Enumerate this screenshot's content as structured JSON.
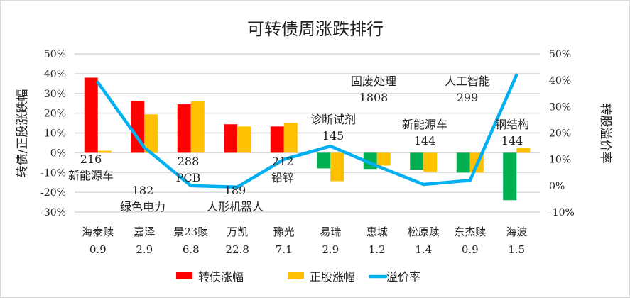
{
  "chart_data": {
    "type": "bar+line",
    "title": "可转债周涨跌排行",
    "ylabel_left": "转债/正股涨跌幅",
    "ylabel_right": "转股溢价率",
    "ylim_left": [
      -30,
      50
    ],
    "ylim_right": [
      -10,
      50
    ],
    "yticks_left": [
      "50%",
      "40%",
      "30%",
      "20%",
      "10%",
      "0%",
      "-10%",
      "-20%",
      "-30%"
    ],
    "yticks_right": [
      "50%",
      "40%",
      "30%",
      "20%",
      "10%",
      "0%",
      "-10%"
    ],
    "grid": true,
    "legend_position": "bottom",
    "categories": [
      "海泰赎",
      "嘉泽",
      "景23赎",
      "万凯",
      "豫光",
      "易瑞",
      "惠城",
      "松原赎",
      "东杰赎",
      "海波"
    ],
    "category_sublabels": [
      "0.9",
      "2.9",
      "6.8",
      "22.8",
      "7.1",
      "2.9",
      "1.2",
      "1.4",
      "0.9",
      "1.5"
    ],
    "series": [
      {
        "name": "转债涨幅",
        "type": "bar",
        "axis": "left",
        "color": "#ff0000",
        "negative_color": "#00b050",
        "values": [
          38,
          26.3,
          24.5,
          14.4,
          13.3,
          -7.9,
          -8.2,
          -8.6,
          -10,
          -24
        ]
      },
      {
        "name": "正股涨幅",
        "type": "bar",
        "axis": "left",
        "color": "#ffc000",
        "values": [
          1,
          19.4,
          26,
          13.3,
          15.1,
          -14.4,
          -6.5,
          -9.7,
          -10,
          2.5
        ]
      },
      {
        "name": "溢价率",
        "type": "line",
        "axis": "right",
        "color": "#00b0f0",
        "values": [
          39.2,
          14.5,
          0,
          -0.5,
          10,
          15,
          7.5,
          0.5,
          2,
          42
        ]
      }
    ],
    "annotations": [
      {
        "index": 0,
        "lines": [
          "216",
          "新能源车"
        ]
      },
      {
        "index": 1,
        "lines": [
          "182",
          "绿色电力"
        ]
      },
      {
        "index": 2,
        "lines": [
          "288",
          "PCB"
        ]
      },
      {
        "index": 3,
        "lines": [
          "189",
          "人形机器人"
        ]
      },
      {
        "index": 4,
        "lines": [
          "212",
          "铅锌"
        ]
      },
      {
        "index": 5,
        "lines": [
          "诊断试剂",
          "145"
        ]
      },
      {
        "index": 6,
        "lines": [
          "固废处理",
          "1808"
        ]
      },
      {
        "index": 7,
        "lines": [
          "新能源车",
          "144"
        ]
      },
      {
        "index": 8,
        "lines": [
          "人工智能",
          "299"
        ]
      },
      {
        "index": 9,
        "lines": [
          "钢结构",
          "144"
        ]
      }
    ]
  }
}
